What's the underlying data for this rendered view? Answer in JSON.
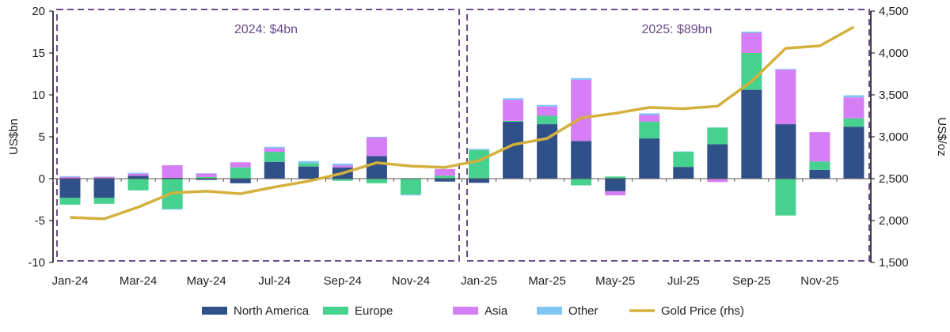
{
  "chart_data": {
    "type": "bar",
    "stacked": true,
    "categories": [
      "Jan-24",
      "Feb-24",
      "Mar-24",
      "Apr-24",
      "May-24",
      "Jun-24",
      "Jul-24",
      "Aug-24",
      "Sep-24",
      "Oct-24",
      "Nov-24",
      "Dec-24",
      "Jan-25",
      "Feb-25",
      "Mar-25",
      "Apr-25",
      "May-25",
      "Jun-25",
      "Jul-25",
      "Aug-25",
      "Sep-25",
      "Oct-25",
      "Nov-25",
      "Dec-25"
    ],
    "tick_labels": [
      "Jan-24",
      "Mar-24",
      "May-24",
      "Jul-24",
      "Sep-24",
      "Nov-24",
      "Jan-25",
      "Mar-25",
      "May-25",
      "Jul-25",
      "Sep-25",
      "Nov-25"
    ],
    "ylabel": "US$bn",
    "ylabel_right": "US$/oz",
    "ylim": [
      -10,
      20
    ],
    "ylim_right": [
      1500,
      4500
    ],
    "yticks": [
      -10,
      -5,
      0,
      5,
      10,
      15,
      20
    ],
    "yticks_right": [
      "1,500",
      "2,000",
      "2,500",
      "3,000",
      "3,500",
      "4,000",
      "4,500"
    ],
    "series": [
      {
        "name": "North America",
        "color": "#2f5089",
        "values": [
          -2.3,
          -2.3,
          0.35,
          0.1,
          -0.15,
          -0.55,
          2.0,
          1.45,
          1.35,
          2.7,
          0.05,
          -0.35,
          -0.5,
          6.8,
          6.5,
          4.5,
          -1.5,
          4.8,
          1.4,
          4.1,
          10.6,
          6.5,
          1.05,
          6.2
        ]
      },
      {
        "name": "Europe",
        "color": "#46d18f",
        "values": [
          -0.8,
          -0.7,
          -1.4,
          -3.6,
          0.2,
          1.35,
          1.2,
          0.4,
          -0.25,
          -0.55,
          -1.9,
          0.35,
          3.4,
          0.1,
          1.0,
          -0.8,
          0.25,
          2.0,
          1.8,
          2.0,
          4.4,
          -4.4,
          1.0,
          1.0
        ]
      },
      {
        "name": "Asia",
        "color": "#d67ef5",
        "values": [
          0.2,
          0.2,
          0.25,
          1.5,
          0.4,
          0.6,
          0.45,
          0,
          0.25,
          2.2,
          0,
          0.8,
          0,
          2.5,
          1.1,
          7.3,
          -0.5,
          0.8,
          0,
          -0.4,
          2.4,
          6.5,
          3.5,
          2.5
        ]
      },
      {
        "name": "Other",
        "color": "#7fc6f5",
        "values": [
          0.1,
          0.05,
          0.1,
          -0.1,
          0.05,
          0,
          0.15,
          0.25,
          0.2,
          0.1,
          -0.1,
          0,
          0.15,
          0.2,
          0.2,
          0.2,
          0,
          0.2,
          0.05,
          0,
          0.15,
          0.1,
          0,
          0.25
        ]
      }
    ],
    "line_series": {
      "name": "Gold Price (rhs)",
      "color": "#d4b03c",
      "axis": "right",
      "values": [
        2038,
        2020,
        2160,
        2330,
        2350,
        2320,
        2400,
        2470,
        2565,
        2690,
        2650,
        2635,
        2715,
        2905,
        2980,
        3225,
        3280,
        3350,
        3335,
        3365,
        3660,
        4055,
        4085,
        4310
      ]
    },
    "annotations": [
      {
        "text": "2024: $4bn",
        "period": "2024"
      },
      {
        "text": "2025: $89bn",
        "period": "2025"
      }
    ],
    "annotation_color": "#6a4c8a",
    "legend": "bottom",
    "grid": false
  }
}
